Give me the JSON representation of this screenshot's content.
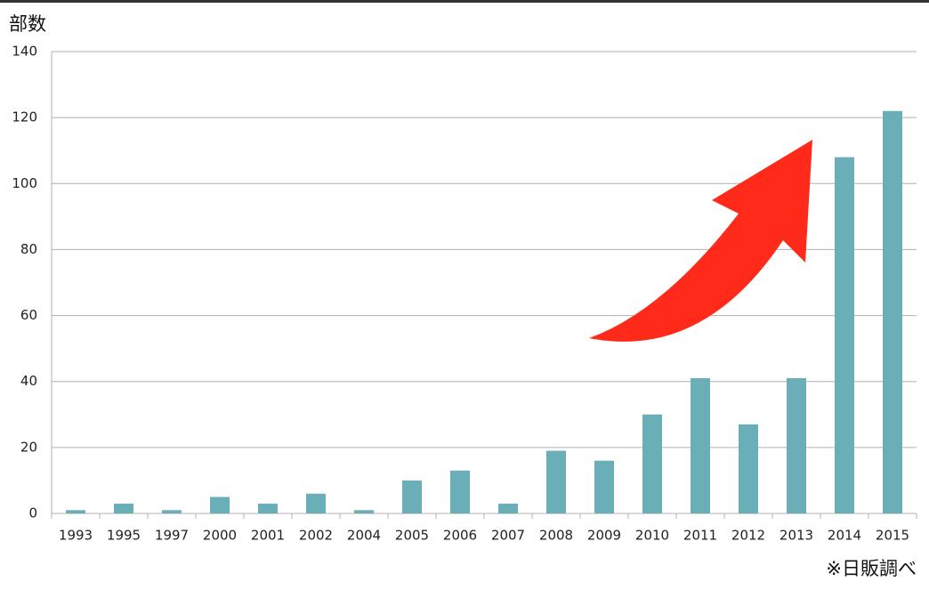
{
  "chart_data": {
    "type": "bar",
    "y_axis_label": "部数",
    "source_note": "※日販調べ",
    "categories": [
      "1993",
      "1995",
      "1997",
      "2000",
      "2001",
      "2002",
      "2004",
      "2005",
      "2006",
      "2007",
      "2008",
      "2009",
      "2010",
      "2011",
      "2012",
      "2013",
      "2014",
      "2015"
    ],
    "values": [
      1,
      3,
      1,
      5,
      3,
      6,
      1,
      10,
      13,
      3,
      19,
      16,
      30,
      41,
      27,
      41,
      108,
      122
    ],
    "color": "#6aaeb8",
    "ylim": [
      0,
      140
    ],
    "yticks": [
      0,
      20,
      40,
      60,
      80,
      100,
      120,
      140
    ],
    "grid": true
  }
}
